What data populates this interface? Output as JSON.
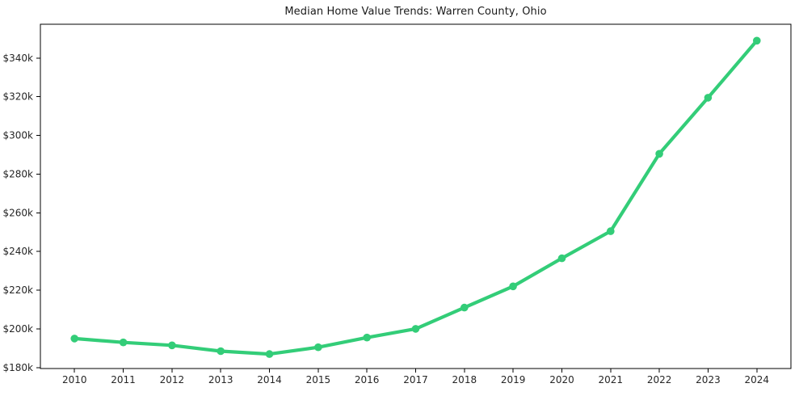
{
  "chart_data": {
    "type": "line",
    "title": "Median Home Value Trends: Warren County, Ohio",
    "x": [
      2010,
      2011,
      2012,
      2013,
      2014,
      2015,
      2016,
      2017,
      2018,
      2019,
      2020,
      2021,
      2022,
      2023,
      2024
    ],
    "xtick_labels": [
      "2010",
      "2011",
      "2012",
      "2013",
      "2014",
      "2015",
      "2016",
      "2017",
      "2018",
      "2019",
      "2020",
      "2021",
      "2022",
      "2023",
      "2024"
    ],
    "values": [
      195000,
      193000,
      191500,
      188500,
      187000,
      190500,
      195500,
      200000,
      211000,
      222000,
      236500,
      250500,
      290500,
      319500,
      349000
    ],
    "ytick_values": [
      180000,
      200000,
      220000,
      240000,
      260000,
      280000,
      300000,
      320000,
      340000
    ],
    "ytick_labels": [
      "$180k",
      "$200k",
      "$220k",
      "$240k",
      "$260k",
      "$280k",
      "$300k",
      "$320k",
      "$340k"
    ],
    "xlabel": "",
    "ylabel": "",
    "xlim": [
      2009.3,
      2024.7
    ],
    "ylim": [
      179500,
      357500
    ],
    "grid": false,
    "legend": "none",
    "line_color": "#33cd78",
    "marker_color": "#33cd78",
    "axis_color": "#000000",
    "text_color": "#262626",
    "background_color": "#ffffff"
  }
}
